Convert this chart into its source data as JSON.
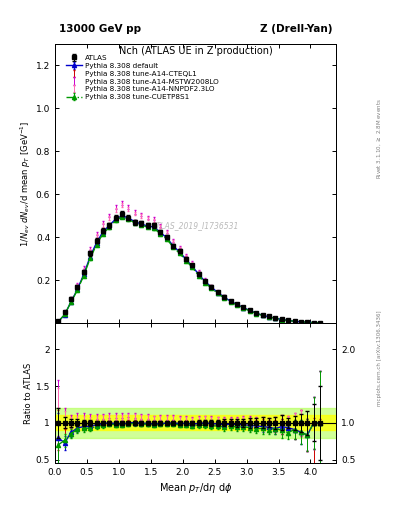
{
  "title_top": "13000 GeV pp",
  "title_right": "Z (Drell-Yan)",
  "plot_title": "Nch (ATLAS UE in Z production)",
  "xlabel": "Mean $p_T$/d$\\eta$ d$\\phi$",
  "ylabel_main": "$1/N_{ev}$ $dN_{ev}$/d mean $p_T$ [GeV$^{-1}$]",
  "ylabel_ratio": "Ratio to ATLAS",
  "watermark": "ATLAS_2019_I1736531",
  "right_label_top": "Rivet 3.1.10, $\\geq$ 2.8M events",
  "right_label_bottom": "mcplots.cern.ch [arXiv:1306.3436]",
  "ylim_main": [
    0.0,
    1.3
  ],
  "ylim_ratio": [
    0.45,
    2.35
  ],
  "xlim": [
    0.0,
    4.4
  ],
  "ratio_yticks": [
    0.5,
    1.0,
    1.5,
    2.0
  ],
  "main_yticks": [
    0.2,
    0.4,
    0.6,
    0.8,
    1.0,
    1.2
  ],
  "atlas_x": [
    0.05,
    0.15,
    0.25,
    0.35,
    0.45,
    0.55,
    0.65,
    0.75,
    0.85,
    0.95,
    1.05,
    1.15,
    1.25,
    1.35,
    1.45,
    1.55,
    1.65,
    1.75,
    1.85,
    1.95,
    2.05,
    2.15,
    2.25,
    2.35,
    2.45,
    2.55,
    2.65,
    2.75,
    2.85,
    2.95,
    3.05,
    3.15,
    3.25,
    3.35,
    3.45,
    3.55,
    3.65,
    3.75,
    3.85,
    3.95,
    4.05,
    4.15
  ],
  "atlas_y": [
    0.01,
    0.055,
    0.115,
    0.17,
    0.24,
    0.325,
    0.385,
    0.43,
    0.455,
    0.49,
    0.51,
    0.49,
    0.47,
    0.465,
    0.455,
    0.455,
    0.425,
    0.4,
    0.36,
    0.335,
    0.3,
    0.27,
    0.23,
    0.195,
    0.17,
    0.145,
    0.125,
    0.105,
    0.09,
    0.075,
    0.062,
    0.05,
    0.04,
    0.033,
    0.026,
    0.02,
    0.015,
    0.011,
    0.008,
    0.006,
    0.004,
    0.002
  ],
  "atlas_yerr": [
    0.002,
    0.004,
    0.006,
    0.008,
    0.01,
    0.012,
    0.012,
    0.012,
    0.012,
    0.012,
    0.012,
    0.012,
    0.012,
    0.012,
    0.012,
    0.012,
    0.01,
    0.01,
    0.01,
    0.01,
    0.009,
    0.008,
    0.008,
    0.007,
    0.007,
    0.006,
    0.006,
    0.005,
    0.005,
    0.004,
    0.004,
    0.003,
    0.003,
    0.002,
    0.002,
    0.002,
    0.001,
    0.001,
    0.001,
    0.001,
    0.001,
    0.001
  ],
  "series": [
    {
      "label": "Pythia 8.308 default",
      "color": "#0000cc",
      "linestyle": "-",
      "marker": "^",
      "markersize": 3,
      "linewidth": 1.0,
      "y": [
        0.008,
        0.04,
        0.1,
        0.158,
        0.228,
        0.31,
        0.375,
        0.425,
        0.455,
        0.485,
        0.5,
        0.49,
        0.472,
        0.462,
        0.452,
        0.448,
        0.422,
        0.398,
        0.36,
        0.332,
        0.298,
        0.265,
        0.228,
        0.195,
        0.168,
        0.143,
        0.122,
        0.103,
        0.088,
        0.073,
        0.06,
        0.048,
        0.038,
        0.031,
        0.024,
        0.019,
        0.014,
        0.01,
        0.007,
        0.005,
        0.004,
        0.002
      ],
      "yerr": [
        0.003,
        0.004,
        0.005,
        0.006,
        0.007,
        0.008,
        0.008,
        0.008,
        0.008,
        0.008,
        0.008,
        0.008,
        0.007,
        0.007,
        0.007,
        0.007,
        0.006,
        0.006,
        0.005,
        0.005,
        0.005,
        0.004,
        0.004,
        0.003,
        0.003,
        0.003,
        0.002,
        0.002,
        0.002,
        0.002,
        0.002,
        0.001,
        0.001,
        0.001,
        0.001,
        0.001,
        0.001,
        0.001,
        0.001,
        0.001,
        0.001,
        0.001
      ]
    },
    {
      "label": "Pythia 8.308 tune-A14-CTEQL1",
      "color": "#cc0000",
      "linestyle": "-",
      "marker": null,
      "markersize": 0,
      "linewidth": 1.5,
      "y": [
        0.009,
        0.046,
        0.105,
        0.162,
        0.232,
        0.315,
        0.38,
        0.428,
        0.458,
        0.488,
        0.505,
        0.492,
        0.473,
        0.464,
        0.454,
        0.45,
        0.424,
        0.4,
        0.362,
        0.334,
        0.3,
        0.268,
        0.23,
        0.196,
        0.169,
        0.144,
        0.123,
        0.104,
        0.089,
        0.074,
        0.061,
        0.049,
        0.039,
        0.032,
        0.025,
        0.019,
        0.014,
        0.01,
        0.008,
        0.005,
        0.003,
        0.001
      ],
      "yerr": [
        0.002,
        0.003,
        0.004,
        0.005,
        0.006,
        0.007,
        0.007,
        0.007,
        0.007,
        0.007,
        0.007,
        0.007,
        0.006,
        0.006,
        0.006,
        0.006,
        0.005,
        0.005,
        0.005,
        0.004,
        0.004,
        0.004,
        0.003,
        0.003,
        0.003,
        0.002,
        0.002,
        0.002,
        0.002,
        0.002,
        0.001,
        0.001,
        0.001,
        0.001,
        0.001,
        0.001,
        0.001,
        0.001,
        0.001,
        0.001,
        0.001,
        0.001
      ]
    },
    {
      "label": "Pythia 8.308 tune-A14-MSTW2008LO",
      "color": "#cc00cc",
      "linestyle": "--",
      "marker": null,
      "markersize": 0,
      "linewidth": 1.0,
      "y": [
        0.012,
        0.06,
        0.12,
        0.182,
        0.258,
        0.348,
        0.418,
        0.468,
        0.5,
        0.54,
        0.56,
        0.542,
        0.518,
        0.505,
        0.492,
        0.485,
        0.456,
        0.428,
        0.386,
        0.356,
        0.318,
        0.283,
        0.242,
        0.205,
        0.177,
        0.15,
        0.128,
        0.108,
        0.092,
        0.077,
        0.063,
        0.051,
        0.04,
        0.033,
        0.026,
        0.02,
        0.015,
        0.011,
        0.008,
        0.005,
        0.004,
        0.002
      ],
      "yerr": [
        0.003,
        0.004,
        0.005,
        0.006,
        0.007,
        0.008,
        0.008,
        0.008,
        0.008,
        0.009,
        0.009,
        0.009,
        0.008,
        0.008,
        0.008,
        0.007,
        0.007,
        0.006,
        0.006,
        0.005,
        0.005,
        0.005,
        0.004,
        0.004,
        0.003,
        0.003,
        0.003,
        0.002,
        0.002,
        0.002,
        0.002,
        0.001,
        0.001,
        0.001,
        0.001,
        0.001,
        0.001,
        0.001,
        0.001,
        0.001,
        0.001,
        0.001
      ]
    },
    {
      "label": "Pythia 8.308 tune-A14-NNPDF2.3LO",
      "color": "#ff69b4",
      "linestyle": ":",
      "marker": null,
      "markersize": 0,
      "linewidth": 1.2,
      "y": [
        0.011,
        0.058,
        0.116,
        0.176,
        0.25,
        0.338,
        0.408,
        0.458,
        0.49,
        0.528,
        0.548,
        0.532,
        0.51,
        0.498,
        0.486,
        0.48,
        0.452,
        0.424,
        0.382,
        0.352,
        0.315,
        0.28,
        0.24,
        0.204,
        0.175,
        0.149,
        0.127,
        0.107,
        0.091,
        0.076,
        0.062,
        0.05,
        0.04,
        0.033,
        0.026,
        0.02,
        0.015,
        0.011,
        0.008,
        0.005,
        0.004,
        0.002
      ],
      "yerr": [
        0.003,
        0.004,
        0.005,
        0.006,
        0.007,
        0.008,
        0.008,
        0.008,
        0.008,
        0.009,
        0.009,
        0.009,
        0.008,
        0.008,
        0.008,
        0.007,
        0.007,
        0.006,
        0.006,
        0.005,
        0.005,
        0.004,
        0.004,
        0.004,
        0.003,
        0.003,
        0.002,
        0.002,
        0.002,
        0.002,
        0.002,
        0.001,
        0.001,
        0.001,
        0.001,
        0.001,
        0.001,
        0.001,
        0.001,
        0.001,
        0.001,
        0.001
      ]
    },
    {
      "label": "Pythia 8.308 tune-CUETP8S1",
      "color": "#009900",
      "linestyle": "-.",
      "marker": "^",
      "markersize": 3,
      "linewidth": 1.0,
      "y": [
        0.007,
        0.042,
        0.098,
        0.155,
        0.222,
        0.302,
        0.366,
        0.416,
        0.447,
        0.478,
        0.496,
        0.484,
        0.466,
        0.457,
        0.447,
        0.442,
        0.416,
        0.392,
        0.354,
        0.326,
        0.292,
        0.26,
        0.222,
        0.189,
        0.163,
        0.139,
        0.118,
        0.1,
        0.085,
        0.071,
        0.058,
        0.046,
        0.037,
        0.03,
        0.024,
        0.018,
        0.013,
        0.01,
        0.007,
        0.005,
        0.004,
        0.002
      ],
      "yerr": [
        0.003,
        0.004,
        0.005,
        0.006,
        0.007,
        0.007,
        0.007,
        0.007,
        0.007,
        0.007,
        0.007,
        0.007,
        0.006,
        0.006,
        0.006,
        0.006,
        0.005,
        0.005,
        0.005,
        0.004,
        0.004,
        0.004,
        0.003,
        0.003,
        0.003,
        0.002,
        0.002,
        0.002,
        0.002,
        0.002,
        0.001,
        0.001,
        0.001,
        0.001,
        0.001,
        0.001,
        0.001,
        0.001,
        0.001,
        0.001,
        0.001,
        0.001
      ]
    }
  ],
  "band_yellow": [
    0.9,
    1.1
  ],
  "band_green": [
    0.8,
    1.2
  ]
}
